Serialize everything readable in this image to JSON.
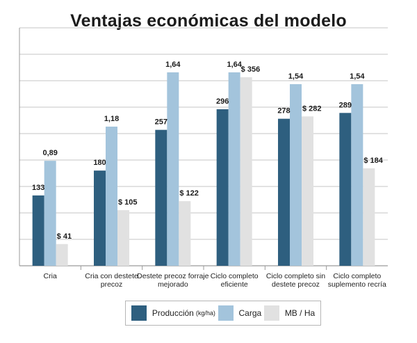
{
  "chart_data": {
    "type": "bar",
    "title": "Ventajas económicas del modelo",
    "xlabel": "",
    "ylabel": "",
    "grid": true,
    "legend_position": "bottom",
    "categories": [
      [
        "Cria"
      ],
      [
        "Cria con destete",
        "precoz"
      ],
      [
        "Destete precoz forraje",
        "mejorado"
      ],
      [
        "Ciclo completo",
        "eficiente"
      ],
      [
        "Ciclo completo sin",
        "destete precoz"
      ],
      [
        "Ciclo completo",
        "suplemento recría"
      ]
    ],
    "series": [
      {
        "name": "Producción",
        "unit": "(kg/ha)",
        "color": "#2e5f7f",
        "values": [
          133,
          180,
          257,
          296,
          278,
          289
        ],
        "labels": [
          "133",
          "180",
          "257",
          "296",
          "278",
          "289"
        ]
      },
      {
        "name": "Carga",
        "unit": "",
        "color": "#a3c4dc",
        "values": [
          0.89,
          1.18,
          1.64,
          1.64,
          1.54,
          1.54
        ],
        "labels": [
          "0,89",
          "1,18",
          "1,64",
          "1,64",
          "1,54",
          "1,54"
        ]
      },
      {
        "name": "MB / Ha",
        "unit": "",
        "color": "#e1e1e1",
        "values": [
          41,
          105,
          122,
          356,
          282,
          184
        ],
        "labels": [
          "$ 41",
          "$ 105",
          "$ 122",
          "$ 356",
          "$ 282",
          "$ 184"
        ]
      }
    ]
  }
}
